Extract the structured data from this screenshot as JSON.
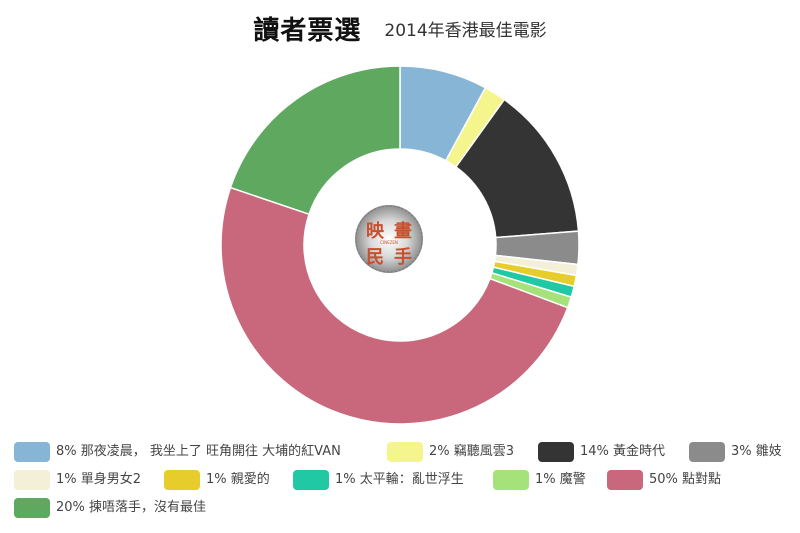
{
  "header": {
    "title": "讀者票選",
    "subtitle": "2014年香港最佳電影"
  },
  "logo": {
    "name": "映畫民手 logo",
    "glyphs": [
      "映",
      "畫",
      "民",
      "手"
    ],
    "caption": "CINEZEN"
  },
  "chart_data": {
    "type": "pie",
    "donut": true,
    "legend_position": "bottom",
    "slices": [
      {
        "label": "8% 那夜凌晨， 我坐上了 旺角開往 大埔的紅VAN",
        "name": "那夜凌晨， 我坐上了 旺角開往 大埔的紅VAN",
        "value": 8,
        "color": "#86b5d6"
      },
      {
        "label": "2% 竊聽風雲3",
        "name": "竊聽風雲3",
        "value": 2,
        "color": "#f5f58d"
      },
      {
        "label": "14% 黃金時代",
        "name": "黃金時代",
        "value": 14,
        "color": "#343434"
      },
      {
        "label": "3% 雛妓",
        "name": "雛妓",
        "value": 3,
        "color": "#8b8b8b"
      },
      {
        "label": "1% 單身男女2",
        "name": "單身男女2",
        "value": 1,
        "color": "#f4f0d8"
      },
      {
        "label": "1% 親愛的",
        "name": "親愛的",
        "value": 1,
        "color": "#e7cd2b"
      },
      {
        "label": "1% 太平輪：亂世浮生",
        "name": "太平輪：亂世浮生",
        "value": 1,
        "color": "#20c9a4"
      },
      {
        "label": "1% 魔警",
        "name": "魔警",
        "value": 1,
        "color": "#a6e27a"
      },
      {
        "label": "50% 點對點",
        "name": "點對點",
        "value": 50,
        "color": "#c9687d"
      },
      {
        "label": "20% 揀唔落手，沒有最佳",
        "name": "揀唔落手，沒有最佳",
        "value": 20,
        "color": "#5ea860"
      }
    ]
  }
}
